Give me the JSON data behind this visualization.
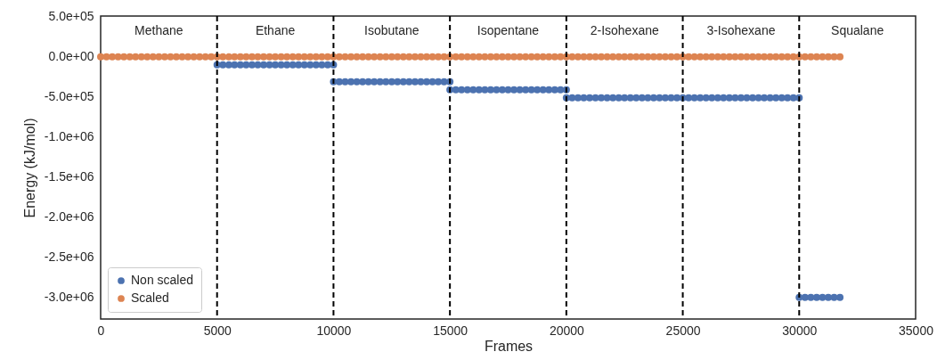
{
  "chart_data": {
    "type": "scatter",
    "xlabel": "Frames",
    "ylabel": "Energy (kJ/mol)",
    "xlim": [
      0,
      35000
    ],
    "xticks": [
      0,
      5000,
      10000,
      15000,
      20000,
      25000,
      30000,
      35000
    ],
    "ylim": [
      -3270000,
      510000
    ],
    "yticks": [
      {
        "value": 500000,
        "label": "5.0e+05"
      },
      {
        "value": 0,
        "label": "0.0e+00"
      },
      {
        "value": -500000,
        "label": "-5.0e+05"
      },
      {
        "value": -1000000,
        "label": "-1.0e+06"
      },
      {
        "value": -1500000,
        "label": "-1.5e+06"
      },
      {
        "value": -2000000,
        "label": "-2.0e+06"
      },
      {
        "value": -2500000,
        "label": "-2.5e+06"
      },
      {
        "value": -3000000,
        "label": "-3.0e+06"
      }
    ],
    "grid": false,
    "legend": "bottom left",
    "marker": "circle",
    "series": [
      {
        "name": "Non scaled",
        "color": "#4c72b0",
        "x": [
          5000,
          5250,
          5500,
          5750,
          6000,
          6250,
          6500,
          6750,
          7000,
          7250,
          7500,
          7750,
          8000,
          8250,
          8500,
          8750,
          9000,
          9250,
          9500,
          9750,
          10000,
          10000,
          10250,
          10500,
          10750,
          11000,
          11250,
          11500,
          11750,
          12000,
          12250,
          12500,
          12750,
          13000,
          13250,
          13500,
          13750,
          14000,
          14250,
          14500,
          14750,
          15000,
          15000,
          15250,
          15500,
          15750,
          16000,
          16250,
          16500,
          16750,
          17000,
          17250,
          17500,
          17750,
          18000,
          18250,
          18500,
          18750,
          19000,
          19250,
          19500,
          19750,
          20000,
          20000,
          20250,
          20500,
          20750,
          21000,
          21250,
          21500,
          21750,
          22000,
          22250,
          22500,
          22750,
          23000,
          23250,
          23500,
          23750,
          24000,
          24250,
          24500,
          24750,
          25000,
          25250,
          25500,
          25750,
          26000,
          26250,
          26500,
          26750,
          27000,
          27250,
          27500,
          27750,
          28000,
          28250,
          28500,
          28750,
          29000,
          29250,
          29500,
          29750,
          30000,
          30000,
          30250,
          30500,
          30750,
          31000,
          31250,
          31500,
          31750
        ],
        "values": [
          -100000,
          -100000,
          -100000,
          -100000,
          -100000,
          -100000,
          -100000,
          -100000,
          -100000,
          -100000,
          -100000,
          -100000,
          -100000,
          -100000,
          -100000,
          -100000,
          -100000,
          -100000,
          -100000,
          -100000,
          -100000,
          -310000,
          -310000,
          -310000,
          -310000,
          -310000,
          -310000,
          -310000,
          -310000,
          -310000,
          -310000,
          -310000,
          -310000,
          -310000,
          -310000,
          -310000,
          -310000,
          -310000,
          -310000,
          -310000,
          -310000,
          -310000,
          -410000,
          -410000,
          -410000,
          -410000,
          -410000,
          -410000,
          -410000,
          -410000,
          -410000,
          -410000,
          -410000,
          -410000,
          -410000,
          -410000,
          -410000,
          -410000,
          -410000,
          -410000,
          -410000,
          -410000,
          -410000,
          -510000,
          -510000,
          -510000,
          -510000,
          -510000,
          -510000,
          -510000,
          -510000,
          -510000,
          -510000,
          -510000,
          -510000,
          -510000,
          -510000,
          -510000,
          -510000,
          -510000,
          -510000,
          -510000,
          -510000,
          -510000,
          -510000,
          -510000,
          -510000,
          -510000,
          -510000,
          -510000,
          -510000,
          -510000,
          -510000,
          -510000,
          -510000,
          -510000,
          -510000,
          -510000,
          -510000,
          -510000,
          -510000,
          -510000,
          -510000,
          -510000,
          -3000000,
          -3000000,
          -3000000,
          -3000000,
          -3000000,
          -3000000,
          -3000000,
          -3000000
        ]
      },
      {
        "name": "Scaled",
        "color": "#dd8452",
        "x": [
          0,
          250,
          500,
          750,
          1000,
          1250,
          1500,
          1750,
          2000,
          2250,
          2500,
          2750,
          3000,
          3250,
          3500,
          3750,
          4000,
          4250,
          4500,
          4750,
          5000,
          5250,
          5500,
          5750,
          6000,
          6250,
          6500,
          6750,
          7000,
          7250,
          7500,
          7750,
          8000,
          8250,
          8500,
          8750,
          9000,
          9250,
          9500,
          9750,
          10000,
          10250,
          10500,
          10750,
          11000,
          11250,
          11500,
          11750,
          12000,
          12250,
          12500,
          12750,
          13000,
          13250,
          13500,
          13750,
          14000,
          14250,
          14500,
          14750,
          15000,
          15250,
          15500,
          15750,
          16000,
          16250,
          16500,
          16750,
          17000,
          17250,
          17500,
          17750,
          18000,
          18250,
          18500,
          18750,
          19000,
          19250,
          19500,
          19750,
          20000,
          20250,
          20500,
          20750,
          21000,
          21250,
          21500,
          21750,
          22000,
          22250,
          22500,
          22750,
          23000,
          23250,
          23500,
          23750,
          24000,
          24250,
          24500,
          24750,
          25000,
          25250,
          25500,
          25750,
          26000,
          26250,
          26500,
          26750,
          27000,
          27250,
          27500,
          27750,
          28000,
          28250,
          28500,
          28750,
          29000,
          29250,
          29500,
          29750,
          30000,
          30250,
          30500,
          30750,
          31000,
          31250,
          31500,
          31750
        ],
        "values": [
          0,
          0,
          0,
          0,
          0,
          0,
          0,
          0,
          0,
          0,
          0,
          0,
          0,
          0,
          0,
          0,
          0,
          0,
          0,
          0,
          0,
          0,
          0,
          0,
          0,
          0,
          0,
          0,
          0,
          0,
          0,
          0,
          0,
          0,
          0,
          0,
          0,
          0,
          0,
          0,
          0,
          0,
          0,
          0,
          0,
          0,
          0,
          0,
          0,
          0,
          0,
          0,
          0,
          0,
          0,
          0,
          0,
          0,
          0,
          0,
          0,
          0,
          0,
          0,
          0,
          0,
          0,
          0,
          0,
          0,
          0,
          0,
          0,
          0,
          0,
          0,
          0,
          0,
          0,
          0,
          0,
          0,
          0,
          0,
          0,
          0,
          0,
          0,
          0,
          0,
          0,
          0,
          0,
          0,
          0,
          0,
          0,
          0,
          0,
          0,
          0,
          0,
          0,
          0,
          0,
          0,
          0,
          0,
          0,
          0,
          0,
          0,
          0,
          0,
          0,
          0,
          0,
          0,
          0,
          0,
          0,
          0,
          0,
          0,
          0,
          0,
          0,
          0
        ]
      }
    ],
    "ref_lines": [
      {
        "axis": "x",
        "value": 5000,
        "color": "#000000",
        "line_style": "dashed"
      },
      {
        "axis": "x",
        "value": 10000,
        "color": "#000000",
        "line_style": "dashed"
      },
      {
        "axis": "x",
        "value": 15000,
        "color": "#000000",
        "line_style": "dashed"
      },
      {
        "axis": "x",
        "value": 20000,
        "color": "#000000",
        "line_style": "dashed"
      },
      {
        "axis": "x",
        "value": 25000,
        "color": "#000000",
        "line_style": "dashed"
      },
      {
        "axis": "x",
        "value": 30000,
        "color": "#000000",
        "line_style": "dashed"
      }
    ],
    "annotations": [
      "Methane",
      "Ethane",
      "Isobutane",
      "Isopentane",
      "2-Isohexane",
      "3-Isohexane",
      "Squalane"
    ]
  }
}
